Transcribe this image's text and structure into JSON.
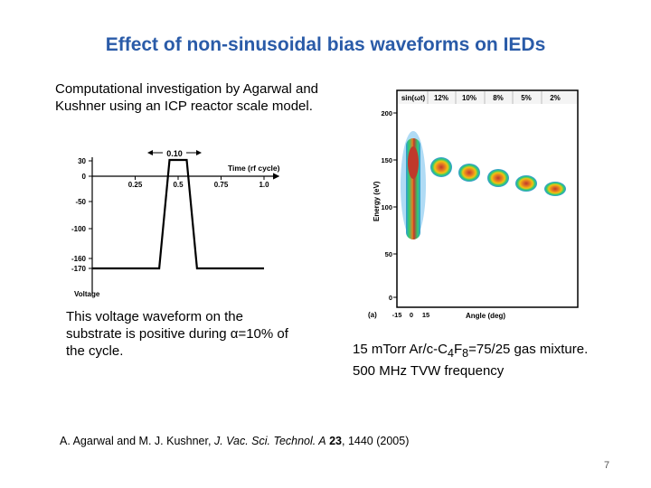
{
  "slide": {
    "title": "Effect of non-sinusoidal bias waveforms on IEDs",
    "intro": "Computational investigation by Agarwal and Kushner using an ICP reactor scale model.",
    "caption_left": {
      "before": "This voltage waveform on the substrate is positive during ",
      "alpha": "α",
      "after": "=10% of the cycle."
    },
    "caption_right": {
      "line1_a": "15 mTorr Ar/c-C",
      "sub1": "4",
      "line1_b": "F",
      "sub2": "8",
      "line1_c": "=75/25 gas mixture.",
      "line2": "500 MHz TVW frequency"
    },
    "citation": {
      "authors": "A. Agarwal and M. J. Kushner, ",
      "journal": "J. Vac. Sci. Technol. A",
      "volume": " 23",
      "rest": ", 1440 (2005)"
    },
    "page_number": "7"
  },
  "waveform": {
    "y_ticks": [
      "30",
      "0",
      "-50",
      "-100",
      "-160",
      "-170"
    ],
    "x_ticks": [
      "0.25",
      "0.5",
      "0.75",
      "1.0"
    ],
    "x_label": "Time (rf cycle)",
    "y_label": "Voltage",
    "annotation": "0.10",
    "points": [
      [
        0,
        -170
      ],
      [
        0.39,
        -170
      ],
      [
        0.45,
        30
      ],
      [
        0.55,
        30
      ],
      [
        0.61,
        -170
      ],
      [
        1.0,
        -170
      ]
    ]
  },
  "ied_plot": {
    "panel_label": "(a)",
    "y_label": "Energy (eV)",
    "x_label": "Angle (deg)",
    "y_ticks": [
      "200",
      "150",
      "100",
      "50",
      "0"
    ],
    "x_ticks": [
      "-15",
      "0",
      "15"
    ],
    "header_labels": [
      "sin(ωt)",
      "12%",
      "10%",
      "8%",
      "5%",
      "2%"
    ]
  },
  "chart_data": {
    "type": "line",
    "x": [
      0,
      0.39,
      0.45,
      0.55,
      0.61,
      1.0
    ],
    "y": [
      -170,
      -170,
      30,
      30,
      -170,
      -170
    ],
    "xlabel": "Time (rf cycle)",
    "ylabel": "Voltage",
    "xlim": [
      0,
      1.0
    ],
    "ylim": [
      -170,
      30
    ],
    "annotations": [
      "0.10"
    ]
  }
}
